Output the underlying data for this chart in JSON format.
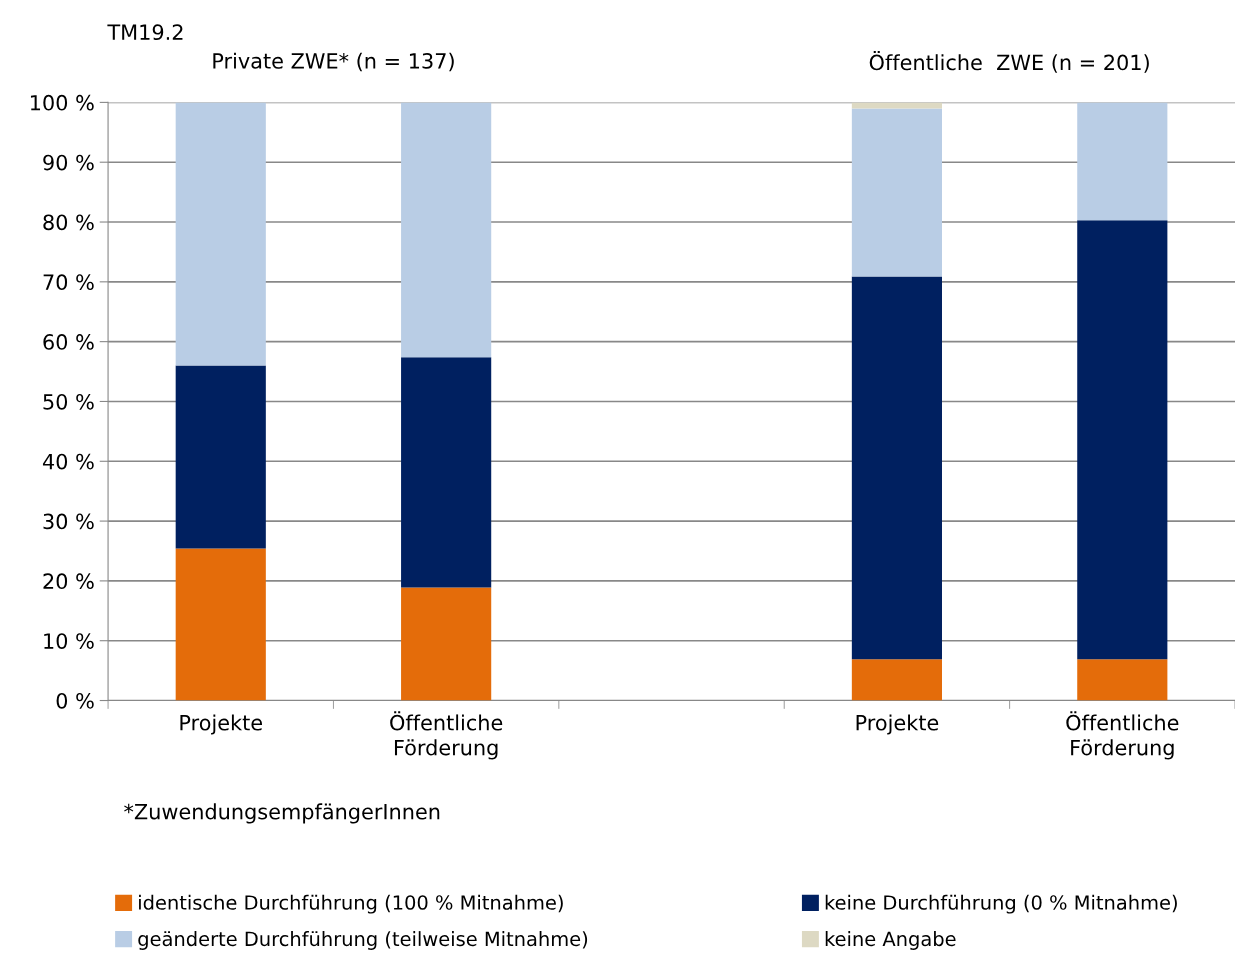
{
  "chart_data": {
    "type": "bar",
    "stacked": true,
    "title": "TM19.2",
    "categories": [
      "Projekte",
      "Öffentliche\nFörderung",
      null,
      "Projekte",
      "Öffentliche\nFörderung"
    ],
    "series": [
      {
        "name": "identische Durchführung (100 % Mitnahme)",
        "color": "#e46c0a",
        "values": [
          25.4,
          18.9,
          null,
          6.9,
          6.9
        ]
      },
      {
        "name": "keine Durchführung (0 % Mitnahme)",
        "color": "#002060",
        "values": [
          30.6,
          38.5,
          null,
          64.0,
          73.4
        ]
      },
      {
        "name": "geänderte Durchführung (teilweise Mitnahme)",
        "color": "#b9cde5",
        "values": [
          44.0,
          42.6,
          null,
          28.1,
          19.7
        ]
      },
      {
        "name": "keine Angabe",
        "color": "#ddd9c3",
        "values": [
          0,
          0,
          null,
          1.0,
          0
        ]
      }
    ],
    "ylim": [
      0,
      100
    ],
    "yticks": [
      {
        "value": 0,
        "label": "0 %"
      },
      {
        "value": 10,
        "label": "10 %"
      },
      {
        "value": 20,
        "label": "20 %"
      },
      {
        "value": 30,
        "label": "30 %"
      },
      {
        "value": 40,
        "label": "40 %"
      },
      {
        "value": 50,
        "label": "50 %"
      },
      {
        "value": 60,
        "label": "60 %"
      },
      {
        "value": 70,
        "label": "70 %"
      },
      {
        "value": 80,
        "label": "80 %"
      },
      {
        "value": 90,
        "label": "90 %"
      },
      {
        "value": 100,
        "label": "100 %"
      }
    ],
    "grid": "y",
    "legend": "bottom",
    "annotations": [
      "Private ZWE* (n = 137)",
      "Öffentliche  ZWE (n = 201)",
      "*ZuwendungsempfängerInnen"
    ]
  }
}
